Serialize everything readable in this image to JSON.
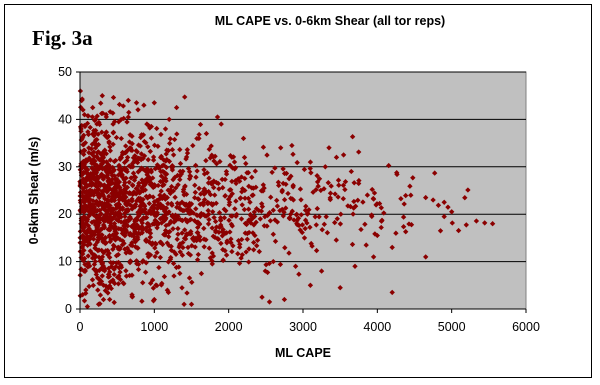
{
  "figure": {
    "label": "Fig. 3a"
  },
  "chart_data": {
    "type": "scatter",
    "title": "ML CAPE vs. 0-6km Shear (all tor reps)",
    "xlabel": "ML CAPE",
    "ylabel": "0-6km Shear (m/s)",
    "xlim": [
      0,
      6000
    ],
    "ylim": [
      0,
      50
    ],
    "xticks": [
      0,
      1000,
      2000,
      3000,
      4000,
      5000,
      6000
    ],
    "yticks": [
      0,
      10,
      20,
      30,
      40,
      50
    ],
    "grid": "horizontal",
    "legend": "none",
    "colors": {
      "plot_background": "#c0c0c0",
      "marker": "#8b0000",
      "gridline": "#000000"
    },
    "series_description_visible": false,
    "points": [
      [
        5,
        46
      ],
      [
        20,
        44
      ],
      [
        40,
        42
      ],
      [
        15,
        38
      ],
      [
        60,
        41
      ],
      [
        300,
        45
      ],
      [
        650,
        44
      ],
      [
        760,
        43.5
      ],
      [
        1000,
        43.5
      ],
      [
        860,
        43
      ],
      [
        1300,
        42.5
      ],
      [
        1850,
        40.5
      ],
      [
        520,
        39.5
      ],
      [
        210,
        40
      ],
      [
        2700,
        34
      ],
      [
        2850,
        34.5
      ],
      [
        3450,
        32
      ],
      [
        3650,
        29
      ],
      [
        3300,
        30
      ],
      [
        3100,
        31
      ],
      [
        4450,
        24
      ],
      [
        4650,
        23.5
      ],
      [
        4900,
        22.5
      ],
      [
        4950,
        21.5
      ],
      [
        5000,
        20.5
      ],
      [
        5550,
        18
      ],
      [
        4900,
        19.5
      ],
      [
        4850,
        16.5
      ],
      [
        4250,
        16
      ],
      [
        4000,
        15.5
      ],
      [
        3950,
        11
      ],
      [
        4200,
        13
      ],
      [
        4650,
        11
      ],
      [
        4200,
        3.5
      ],
      [
        3500,
        4.5
      ],
      [
        3100,
        5
      ],
      [
        2750,
        2
      ],
      [
        2550,
        1.5
      ],
      [
        2450,
        2.5
      ],
      [
        1400,
        1
      ],
      [
        1500,
        1
      ],
      [
        1000,
        2
      ],
      [
        700,
        3
      ],
      [
        400,
        2
      ],
      [
        100,
        0.5
      ],
      [
        250,
        1
      ],
      [
        80,
        4
      ],
      [
        4750,
        23
      ],
      [
        3350,
        34
      ],
      [
        2600,
        10
      ],
      [
        2900,
        9
      ],
      [
        3250,
        8
      ],
      [
        3700,
        9
      ],
      [
        1900,
        39
      ],
      [
        1600,
        36
      ],
      [
        1700,
        37
      ],
      [
        2200,
        36
      ],
      [
        1200,
        40
      ],
      [
        1150,
        38
      ],
      [
        900,
        39
      ],
      [
        50,
        31
      ],
      [
        80,
        29
      ],
      [
        30,
        27
      ],
      [
        120,
        33
      ]
    ]
  }
}
